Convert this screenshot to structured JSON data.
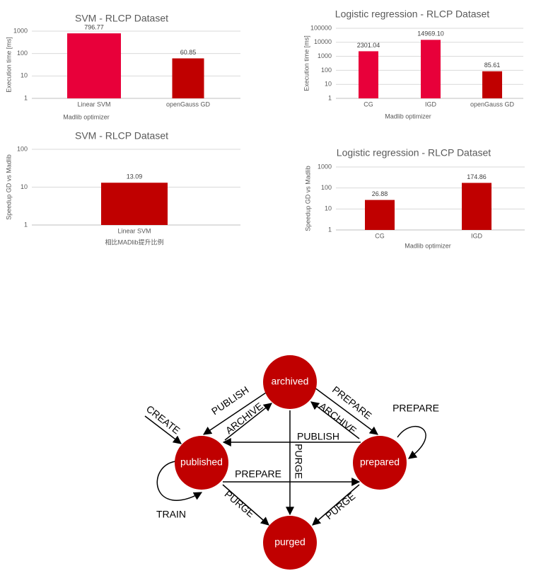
{
  "chart_data": [
    {
      "type": "bar",
      "title": "SVM - RLCP Dataset",
      "y_label": "Execution time [ms]",
      "x_label": "Madlib optimizer",
      "categories": [
        "Linear SVM",
        "openGauss GD"
      ],
      "values": [
        796.77,
        60.85
      ],
      "colors": [
        "#e8003a",
        "#c00000"
      ],
      "log_scale": true,
      "ylim": [
        1,
        1000
      ],
      "yticks": [
        1,
        10,
        100,
        1000
      ],
      "grid": true
    },
    {
      "type": "bar",
      "title": "Logistic regression - RLCP Dataset",
      "y_label": "Execution time [ms]",
      "x_label": "Madlib optimizer",
      "categories": [
        "CG",
        "IGD",
        "openGauss GD"
      ],
      "values": [
        2301.04,
        14969.1,
        85.61
      ],
      "value_labels": [
        "2301.04",
        "14969.10",
        "85.61"
      ],
      "colors": [
        "#e8003a",
        "#e8003a",
        "#c00000"
      ],
      "log_scale": true,
      "ylim": [
        1,
        100000
      ],
      "yticks": [
        1,
        10,
        100,
        1000,
        10000,
        100000
      ],
      "grid": true
    },
    {
      "type": "bar",
      "title": "SVM - RLCP Dataset",
      "y_label": "Speedup GD vs Madlib",
      "x_label": "相比MADlib提升比例",
      "categories": [
        "Linear SVM"
      ],
      "values": [
        13.09
      ],
      "colors": [
        "#c00000"
      ],
      "log_scale": true,
      "ylim": [
        1,
        100
      ],
      "yticks": [
        1,
        10,
        100
      ],
      "grid": true
    },
    {
      "type": "bar",
      "title": "Logistic regression - RLCP Dataset",
      "y_label": "Speedup GD vs Madlib",
      "x_label": "Madlib optimizer",
      "categories": [
        "CG",
        "IGD"
      ],
      "values": [
        26.88,
        174.86
      ],
      "colors": [
        "#c00000",
        "#c00000"
      ],
      "log_scale": true,
      "ylim": [
        1,
        1000
      ],
      "yticks": [
        1,
        10,
        100,
        1000
      ],
      "grid": true
    }
  ],
  "diagram": {
    "nodes": [
      {
        "label": "archived"
      },
      {
        "label": "published"
      },
      {
        "label": "prepared"
      },
      {
        "label": "purged"
      }
    ],
    "edges": [
      {
        "label": "CREATE"
      },
      {
        "label": "PUBLISH"
      },
      {
        "label": "ARCHIVE"
      },
      {
        "label": "PREPARE"
      },
      {
        "label": "ARCHIVE"
      },
      {
        "label": "PREPARE"
      },
      {
        "label": "PUBLISH"
      },
      {
        "label": "PURGE"
      },
      {
        "label": "PREPARE"
      },
      {
        "label": "TRAIN"
      },
      {
        "label": "PURGE"
      },
      {
        "label": "PURGE"
      }
    ]
  }
}
